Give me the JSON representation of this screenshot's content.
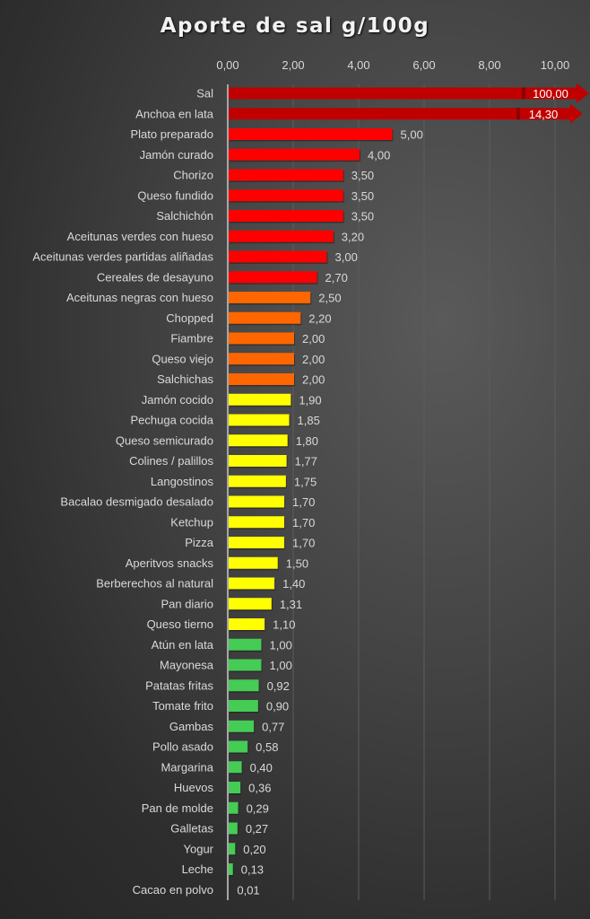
{
  "chart_data": {
    "type": "bar",
    "orientation": "horizontal",
    "title": "Aporte de sal g/100g",
    "xlabel": "",
    "ylabel": "",
    "xlim": [
      0,
      10
    ],
    "x_ticks": [
      "0,00",
      "2,00",
      "4,00",
      "6,00",
      "8,00",
      "10,00"
    ],
    "x_tick_values": [
      0,
      2,
      4,
      6,
      8,
      10
    ],
    "grid": true,
    "legend": "none",
    "overflow_note": "bars exceeding axis shown with arrow",
    "colors": {
      "dark_red": "#c00000",
      "red": "#ff0000",
      "orange": "#ff6600",
      "yellow": "#ffff00",
      "green": "#44cc55"
    },
    "categories": [
      "Sal",
      "Anchoa en lata",
      "Plato preparado",
      "Jamón curado",
      "Chorizo",
      "Queso fundido",
      "Salchichón",
      "Aceitunas verdes con hueso",
      "Aceitunas verdes partidas aliñadas",
      "Cereales de desayuno",
      "Aceitunas negras con hueso",
      "Chopped",
      "Fiambre",
      "Queso viejo",
      "Salchichas",
      "Jamón cocido",
      "Pechuga cocida",
      "Queso semicurado",
      "Colines / palillos",
      "Langostinos",
      "Bacalao desmigado desalado",
      "Ketchup",
      "Pizza",
      "Aperitvos snacks",
      "Berberechos al natural",
      "Pan diario",
      "Queso tierno",
      "Atún en lata",
      "Mayonesa",
      "Patatas fritas",
      "Tomate frito",
      "Gambas",
      "Pollo asado",
      "Margarina",
      "Huevos",
      "Pan de molde",
      "Galletas",
      "Yogur",
      "Leche",
      "Cacao en polvo"
    ],
    "values": [
      100,
      14.3,
      5,
      4,
      3.5,
      3.5,
      3.5,
      3.2,
      3,
      2.7,
      2.5,
      2.2,
      2,
      2,
      2,
      1.9,
      1.85,
      1.8,
      1.77,
      1.75,
      1.7,
      1.7,
      1.7,
      1.5,
      1.4,
      1.31,
      1.1,
      1,
      1,
      0.92,
      0.9,
      0.77,
      0.58,
      0.4,
      0.36,
      0.29,
      0.27,
      0.2,
      0.13,
      0.01
    ],
    "value_labels": [
      "100,00",
      "14,30",
      "5,00",
      "4,00",
      "3,50",
      "3,50",
      "3,50",
      "3,20",
      "3,00",
      "2,70",
      "2,50",
      "2,20",
      "2,00",
      "2,00",
      "2,00",
      "1,90",
      "1,85",
      "1,80",
      "1,77",
      "1,75",
      "1,70",
      "1,70",
      "1,70",
      "1,50",
      "1,40",
      "1,31",
      "1,10",
      "1,00",
      "1,00",
      "0,92",
      "0,90",
      "0,77",
      "0,58",
      "0,40",
      "0,36",
      "0,29",
      "0,27",
      "0,20",
      "0,13",
      "0,01"
    ],
    "bar_colors": [
      "dark_red",
      "dark_red",
      "red",
      "red",
      "red",
      "red",
      "red",
      "red",
      "red",
      "red",
      "orange",
      "orange",
      "orange",
      "orange",
      "orange",
      "yellow",
      "yellow",
      "yellow",
      "yellow",
      "yellow",
      "yellow",
      "yellow",
      "yellow",
      "yellow",
      "yellow",
      "yellow",
      "yellow",
      "green",
      "green",
      "green",
      "green",
      "green",
      "green",
      "green",
      "green",
      "green",
      "green",
      "green",
      "green",
      "green"
    ]
  }
}
